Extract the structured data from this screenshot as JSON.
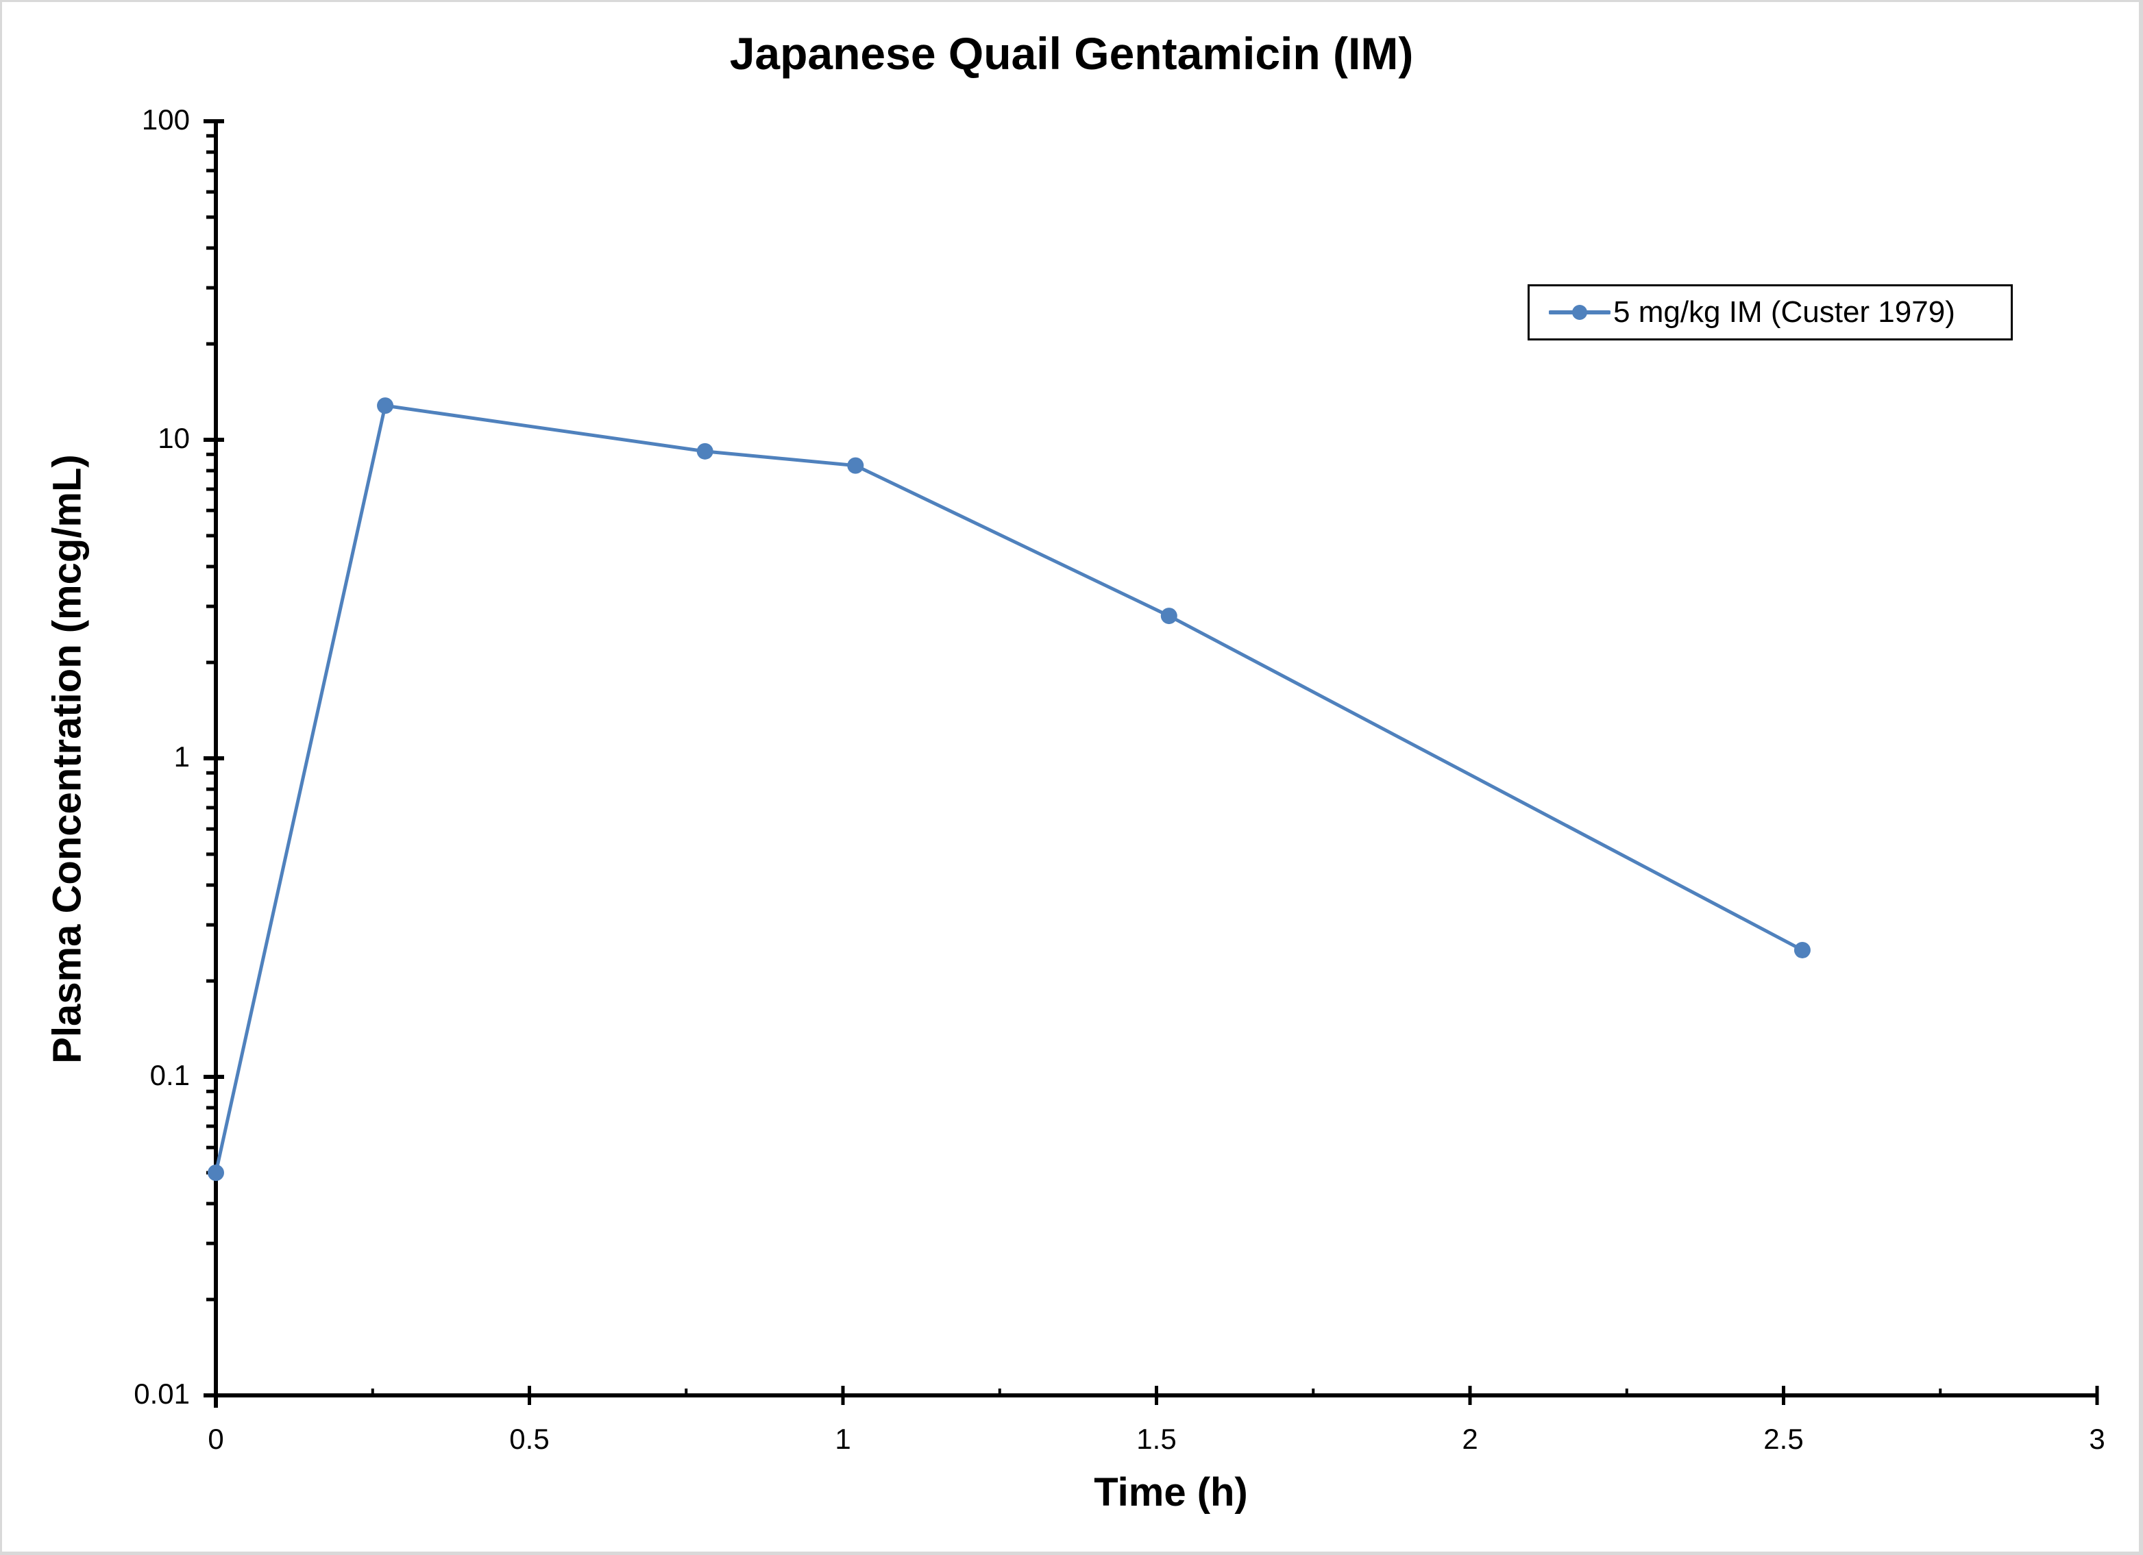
{
  "chart_data": {
    "type": "line",
    "title": "Japanese Quail Gentamicin (IM)",
    "xlabel": "Time (h)",
    "ylabel": "Plasma Concentration (mcg/mL)",
    "xlim": [
      0,
      3
    ],
    "ylim": [
      0.01,
      100
    ],
    "yscale": "log",
    "grid": false,
    "legend_position": "upper right",
    "x_ticks": [
      "0",
      "0.5",
      "1",
      "1.5",
      "2",
      "2.5",
      "3"
    ],
    "y_ticks": [
      "0.01",
      "0.1",
      "1",
      "10",
      "100"
    ],
    "series": [
      {
        "name": "5 mg/kg IM (Custer 1979)",
        "color": "#4f81bd",
        "marker": "circle",
        "x": [
          0,
          0.27,
          0.78,
          1.02,
          1.52,
          2.53
        ],
        "values": [
          0.05,
          12.8,
          9.2,
          8.3,
          2.8,
          0.25
        ]
      }
    ]
  },
  "legend": {
    "label": "5 mg/kg IM (Custer 1979)"
  },
  "colors": {
    "series": "#4f81bd",
    "axis": "#000000",
    "border": "#d9d9d9"
  }
}
